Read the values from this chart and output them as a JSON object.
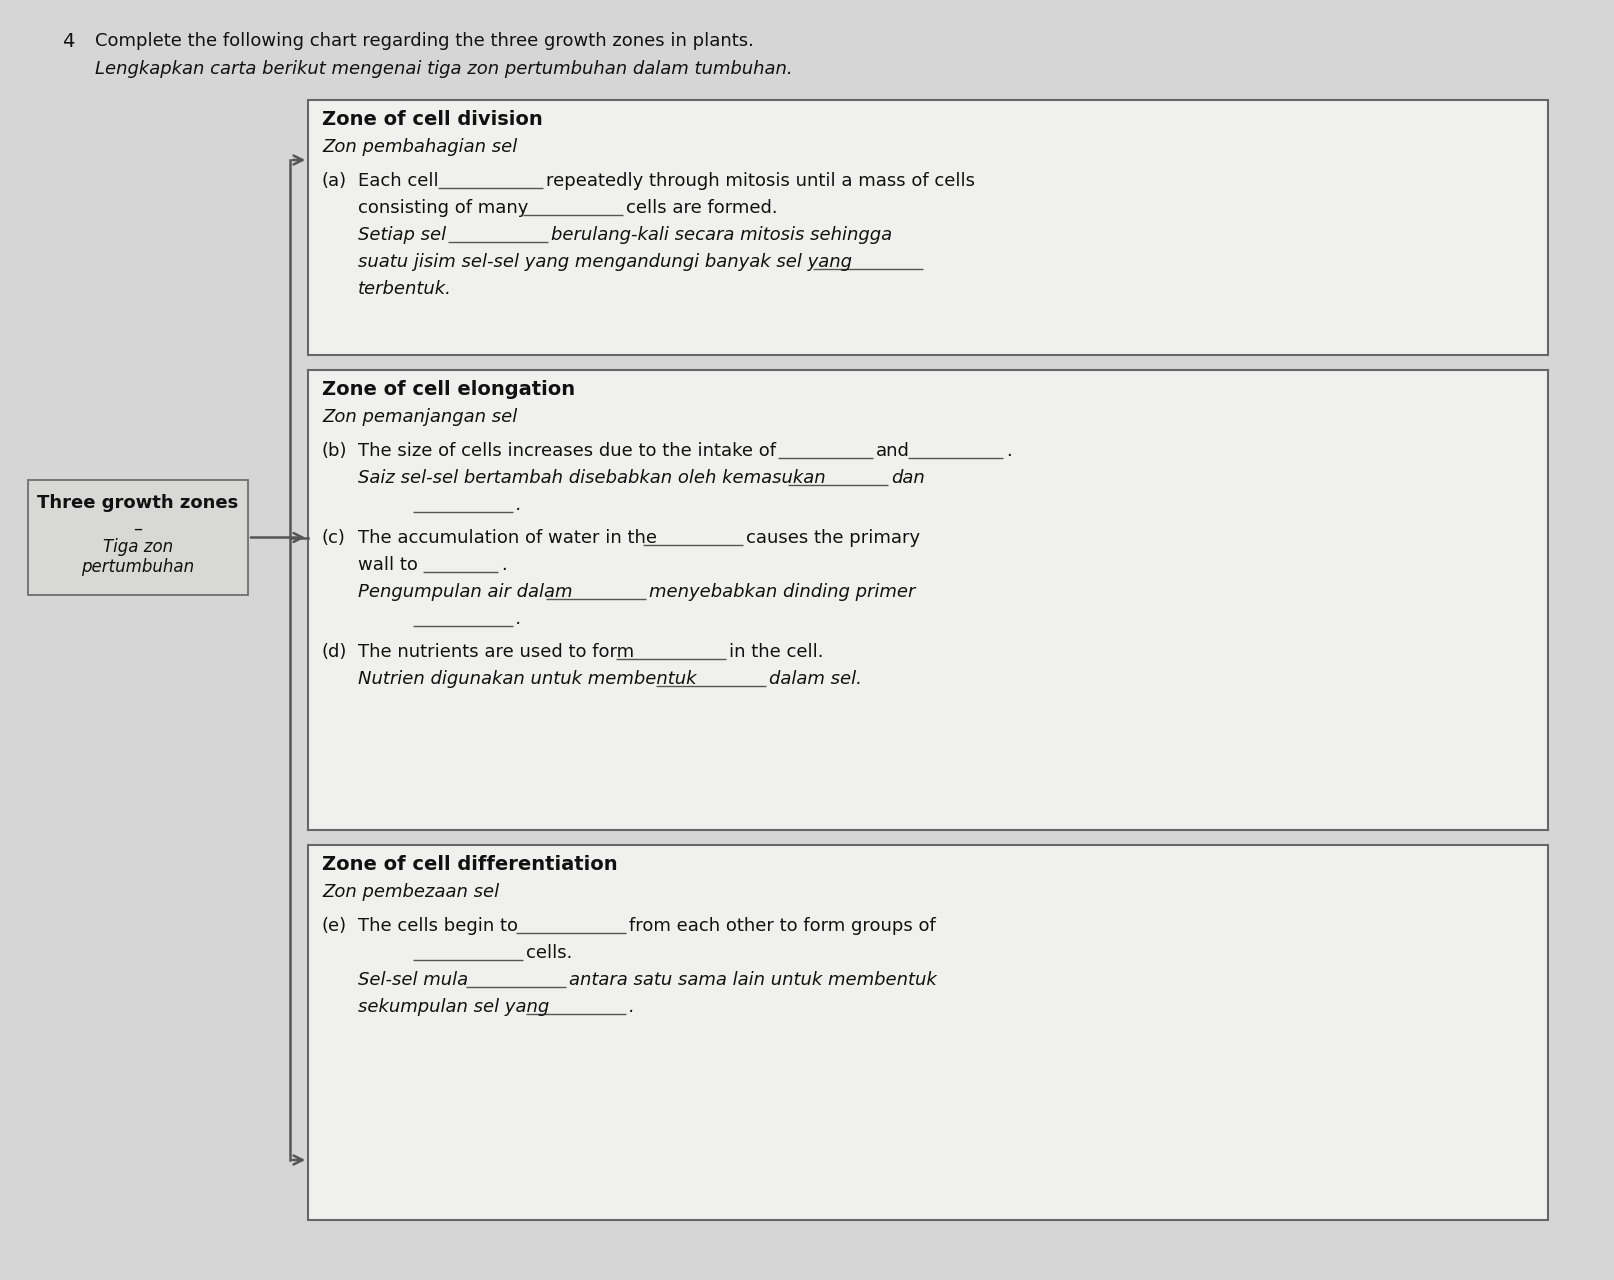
{
  "bg_color": "#c8c8c8",
  "page_bg": "#d8d8d8",
  "box_bg": "#f2f2f2",
  "box_border": "#666666",
  "question_num": "4",
  "title_en": "Complete the following chart regarding the three growth zones in plants.",
  "title_ms": "Lengkapkan carta berikut mengenai tiga zon pertumbuhan dalam tumbuhan.",
  "left_label_en": "Three growth zones",
  "left_label_dash": "–",
  "left_label_ms": "Tiga zon",
  "left_label_ms2": "pertumbuhan",
  "box1_title_en": "Zone of cell division",
  "box1_title_ms": "Zon pembahagian sel",
  "box2_title_en": "Zone of cell elongation",
  "box2_title_ms": "Zon pemanjangan sel",
  "box3_title_en": "Zone of cell differentiation",
  "box3_title_ms": "Zon pembezaan sel",
  "text_color": "#111111",
  "line_color": "#555555",
  "underline_color": "#555555"
}
